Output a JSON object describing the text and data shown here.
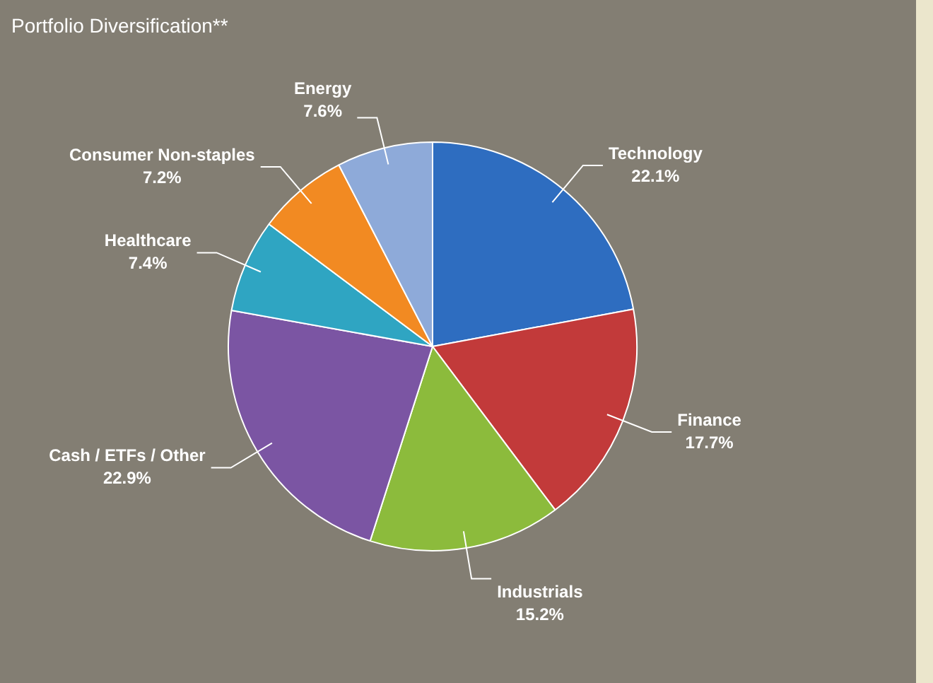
{
  "chart_data": {
    "type": "pie",
    "title": "Portfolio Diversification**",
    "categories": [
      "Technology",
      "Finance",
      "Industrials",
      "Cash / ETFs / Other",
      "Healthcare",
      "Consumer Non-staples",
      "Energy"
    ],
    "values": [
      22.1,
      17.7,
      15.2,
      22.9,
      7.4,
      7.2,
      7.6
    ],
    "colors": [
      "#2e6dc0",
      "#c23a3a",
      "#8cbb3c",
      "#7b55a3",
      "#2fa5c2",
      "#f28a22",
      "#8eaad9"
    ],
    "value_labels": [
      "22.1%",
      "17.7%",
      "15.2%",
      "22.9%",
      "7.4%",
      "7.2%",
      "7.6%"
    ],
    "legend": false
  }
}
